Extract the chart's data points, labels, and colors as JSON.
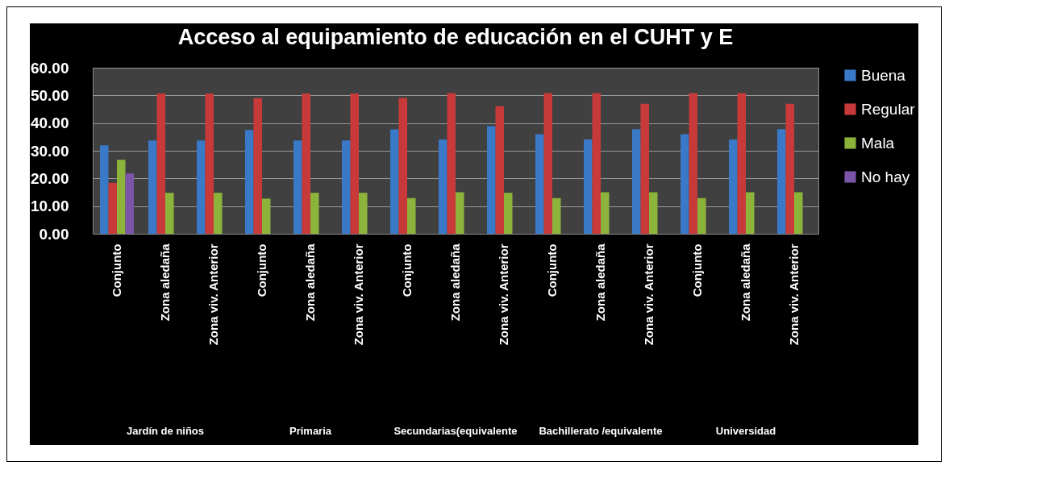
{
  "chart_data": {
    "type": "bar",
    "title": "Acceso al equipamiento de educación en el CUHT y E",
    "categories": [
      "Conjunto",
      "Zona aledaña",
      "Zona viv. Anterior",
      "Conjunto",
      "Zona aledaña",
      "Zona viv. Anterior",
      "Conjunto",
      "Zona aledaña",
      "Zona viv. Anterior",
      "Conjunto",
      "Zona aledaña",
      "Zona viv. Anterior",
      "Conjunto",
      "Zona aledaña",
      "Zona viv. Anterior"
    ],
    "series": [
      {
        "name": "Buena",
        "color": "#3a78c8",
        "values": [
          32.0,
          33.7,
          33.7,
          37.5,
          33.7,
          33.7,
          37.7,
          34.1,
          38.9,
          36.0,
          34.1,
          37.8,
          36.0,
          34.1,
          37.8
        ]
      },
      {
        "name": "Regular",
        "color": "#c83a3a",
        "values": [
          18.4,
          50.7,
          50.7,
          49.0,
          50.7,
          50.7,
          49.1,
          50.8,
          46.1,
          50.8,
          50.8,
          47.0,
          50.8,
          50.8,
          47.0
        ]
      },
      {
        "name": "Mala",
        "color": "#8db43a",
        "values": [
          26.7,
          14.8,
          14.8,
          12.7,
          14.8,
          14.8,
          12.9,
          15.0,
          14.8,
          12.9,
          15.0,
          15.0,
          12.9,
          15.0,
          15.0
        ]
      },
      {
        "name": "No hay",
        "color": "#7a55a8",
        "values": [
          21.8,
          null,
          null,
          null,
          null,
          null,
          null,
          null,
          null,
          null,
          null,
          null,
          null,
          null,
          null
        ]
      }
    ],
    "annotations": [
      "Jardín de niños",
      "Primaria",
      "Secundarias(equivalente",
      "Bachillerato /equivalente",
      "Universidad"
    ],
    "ylim": [
      0,
      60
    ],
    "yticks": [
      {
        "value": 0,
        "label": "0.00"
      },
      {
        "value": 10,
        "label": "10.00"
      },
      {
        "value": 20,
        "label": "20.00"
      },
      {
        "value": 30,
        "label": "30.00"
      },
      {
        "value": 40,
        "label": "40.00"
      },
      {
        "value": 50,
        "label": "50.00"
      },
      {
        "value": 60,
        "label": "60.00"
      }
    ],
    "grid": "y",
    "legend": "right"
  }
}
